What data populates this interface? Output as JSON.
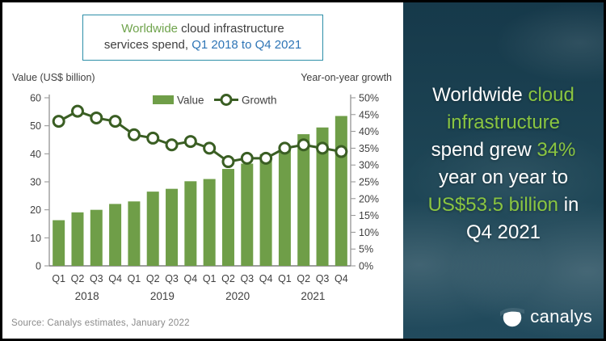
{
  "title_box": {
    "line1_green": "Worldwide",
    "line1_dark": " cloud infrastructure",
    "line2_dark": "services spend, ",
    "line2_blue": "Q1 2018 to Q4 2021"
  },
  "source": "Source: Canalys estimates, January 2022",
  "chart_data": {
    "type": "bar",
    "subtype": "bar+line combo",
    "title": "Worldwide cloud infrastructure services spend, Q1 2018 to Q4 2021",
    "categories": [
      "Q1",
      "Q2",
      "Q3",
      "Q4",
      "Q1",
      "Q2",
      "Q3",
      "Q4",
      "Q1",
      "Q2",
      "Q3",
      "Q4",
      "Q1",
      "Q2",
      "Q3",
      "Q4"
    ],
    "year_groups": [
      "2018",
      "2019",
      "2020",
      "2021"
    ],
    "series": [
      {
        "name": "Value",
        "type": "bar",
        "axis": "left",
        "color": "#6f9e48",
        "values": [
          16.3,
          19.1,
          20,
          22.1,
          23,
          26.5,
          27.5,
          30.2,
          31,
          34.6,
          36.5,
          39.9,
          41.8,
          47,
          49.4,
          53.5
        ]
      },
      {
        "name": "Growth",
        "type": "line",
        "axis": "right",
        "color": "#3a5e23",
        "marker": "open-circle",
        "unit": "%",
        "values": [
          43,
          46,
          44,
          43,
          39,
          38,
          36,
          37,
          35,
          31,
          32,
          32,
          35,
          36,
          35,
          34
        ]
      }
    ],
    "left_axis": {
      "title": "Value (US$ billion)",
      "min": 0,
      "max": 60,
      "step": 10
    },
    "right_axis": {
      "title": "Year-on-year growth",
      "min": 0,
      "max": 50,
      "step": 5,
      "unit": "%"
    },
    "legend_position": "top-center",
    "grid": false
  },
  "panel": {
    "headline_lines": [
      [
        {
          "t": "Worldwide ",
          "g": false
        },
        {
          "t": "cloud",
          "g": true
        }
      ],
      [
        {
          "t": "infrastructure",
          "g": true
        }
      ],
      [
        {
          "t": "spend grew ",
          "g": false
        },
        {
          "t": "34%",
          "g": true
        }
      ],
      [
        {
          "t": "year on year to",
          "g": false
        }
      ],
      [
        {
          "t": "US$53.5 billion",
          "g": true
        },
        {
          "t": " in",
          "g": false
        }
      ],
      [
        {
          "t": "Q4 2021",
          "g": false
        }
      ]
    ],
    "logo_text": "canalys",
    "colors": {
      "headline_green": "#8ac541",
      "background": "#1c4254"
    }
  }
}
